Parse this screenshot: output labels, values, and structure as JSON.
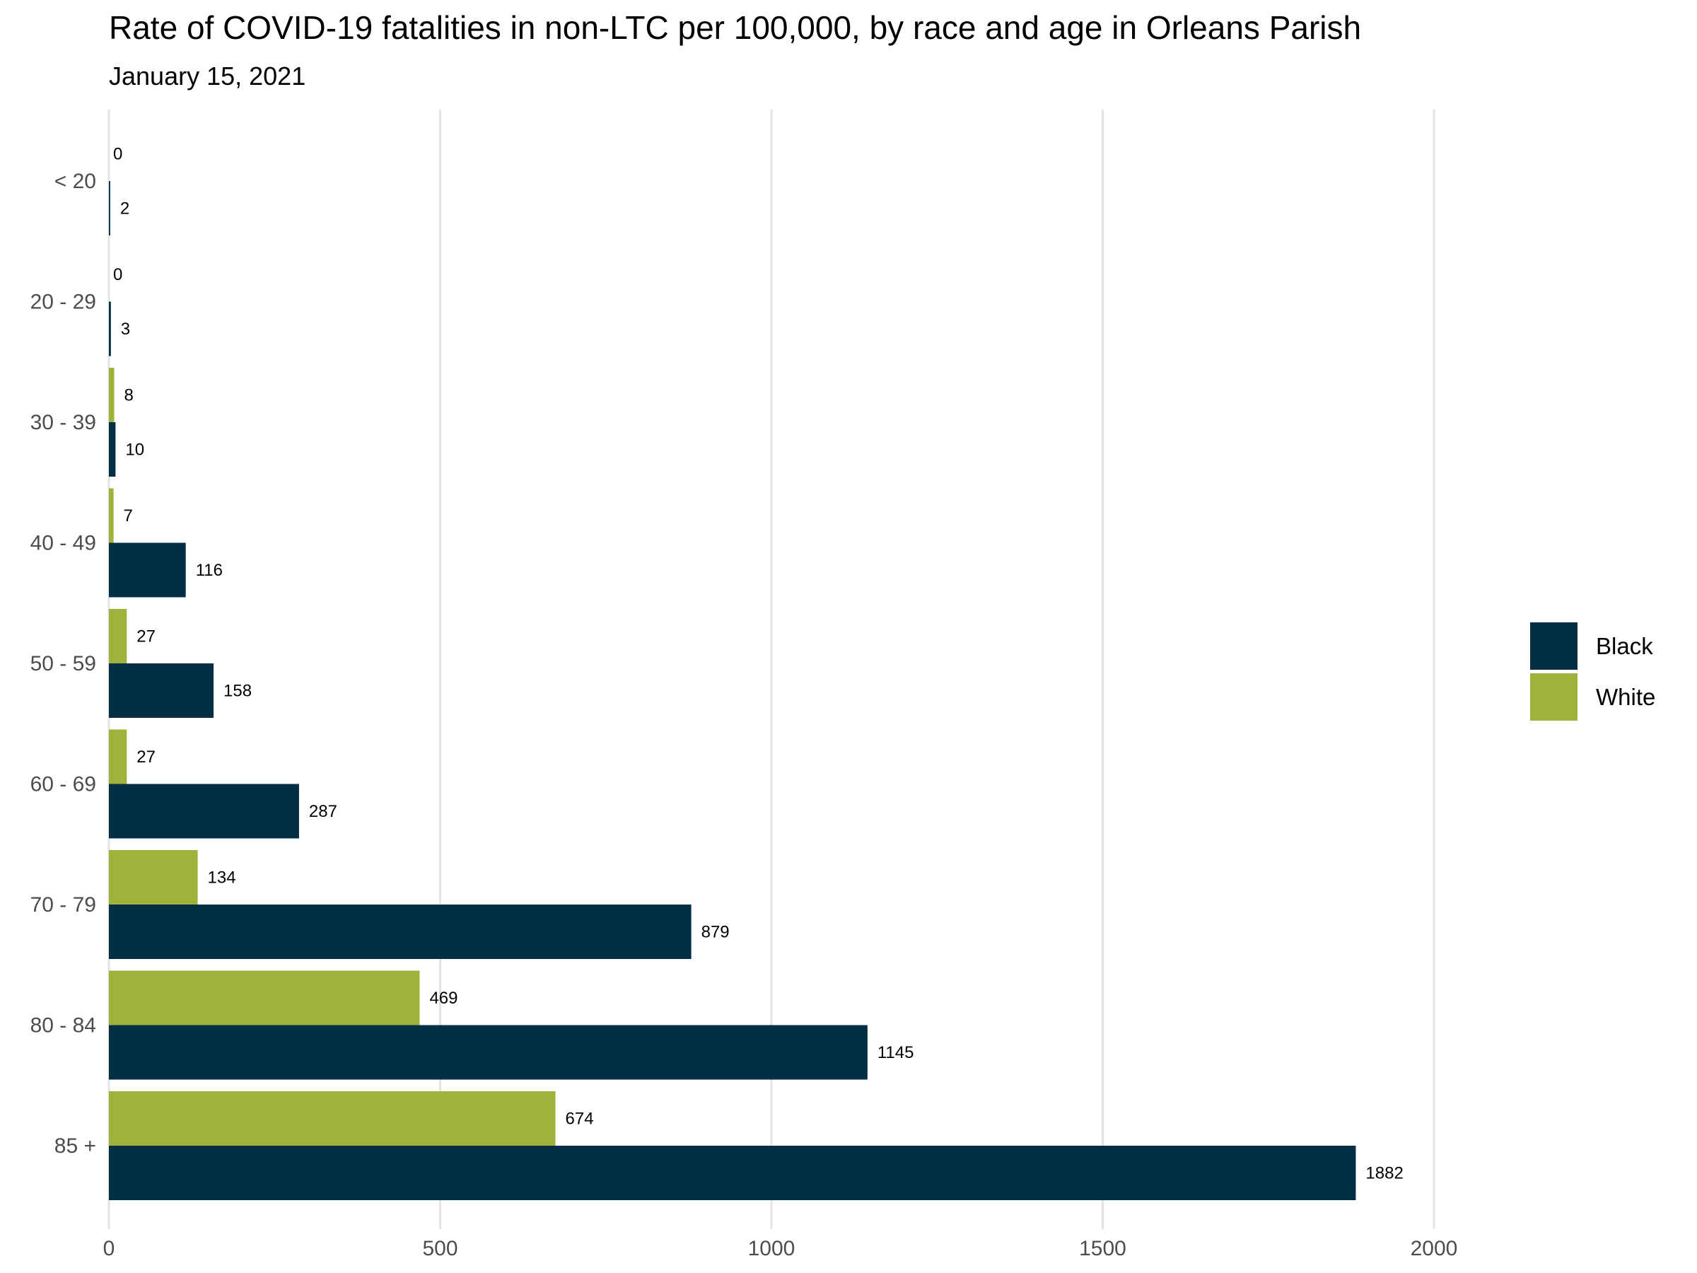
{
  "chart_data": {
    "type": "bar",
    "orientation": "horizontal",
    "title": "Rate of COVID-19 fatalities in non-LTC per 100,000, by race and age in Orleans Parish",
    "subtitle": "January 15, 2021",
    "xlabel": "",
    "ylabel": "",
    "xlim": [
      0,
      2300
    ],
    "xticks": [
      0,
      500,
      1000,
      1500,
      2000
    ],
    "xtick_labels": [
      "0",
      "500",
      "1000",
      "1500",
      "2000"
    ],
    "grid": "vertical",
    "categories": [
      "< 20",
      "20 - 29",
      "30 - 39",
      "40 - 49",
      "50 - 59",
      "60 - 69",
      "70 - 79",
      "80 - 84",
      "85 +"
    ],
    "series": [
      {
        "name": "White",
        "color": "#a0b23b",
        "values": [
          0,
          0,
          8,
          7,
          27,
          27,
          134,
          469,
          674
        ]
      },
      {
        "name": "Black",
        "color": "#012e44",
        "values": [
          2,
          3,
          10,
          116,
          158,
          287,
          879,
          1145,
          1882
        ]
      }
    ],
    "data_labels": true,
    "legend": {
      "position": "right",
      "entries": [
        "Black",
        "White"
      ]
    }
  }
}
